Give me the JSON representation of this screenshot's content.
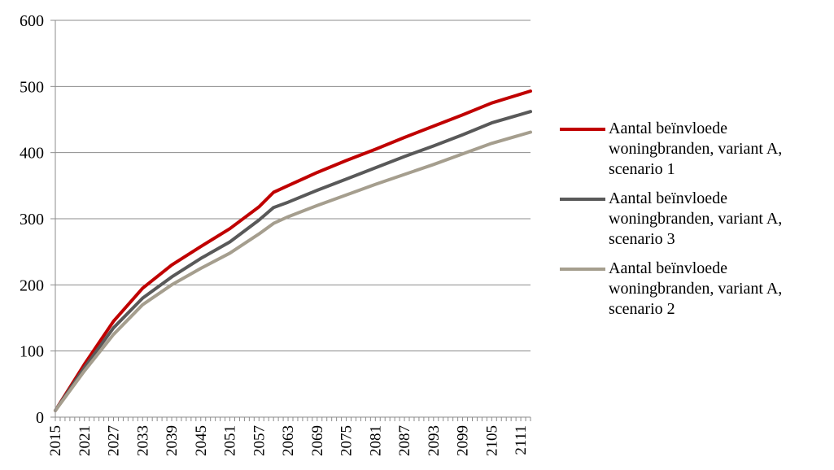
{
  "chart_data": {
    "type": "line",
    "title": "",
    "xlabel": "",
    "ylabel": "",
    "ylim": [
      0,
      600
    ],
    "yticks": [
      "0",
      "100",
      "200",
      "300",
      "400",
      "500",
      "600"
    ],
    "x_start": 2015,
    "x_end": 2113,
    "xtick_labels": [
      "2015",
      "2021",
      "2027",
      "2033",
      "2039",
      "2045",
      "2051",
      "2057",
      "2063",
      "2069",
      "2075",
      "2081",
      "2087",
      "2093",
      "2099",
      "2105",
      "2111"
    ],
    "grid": "horizontal",
    "legend_position": "right",
    "series": [
      {
        "name": "Aantal beïnvloede woningbranden, variant A, scenario 1",
        "color": "#c00000",
        "points": [
          [
            2015,
            10
          ],
          [
            2021,
            80
          ],
          [
            2027,
            145
          ],
          [
            2033,
            195
          ],
          [
            2039,
            230
          ],
          [
            2045,
            258
          ],
          [
            2051,
            285
          ],
          [
            2057,
            318
          ],
          [
            2060,
            340
          ],
          [
            2063,
            350
          ],
          [
            2069,
            370
          ],
          [
            2075,
            388
          ],
          [
            2081,
            405
          ],
          [
            2087,
            423
          ],
          [
            2093,
            440
          ],
          [
            2099,
            457
          ],
          [
            2105,
            475
          ],
          [
            2113,
            493
          ]
        ]
      },
      {
        "name": "Aantal beïnvloede woningbranden, variant A, scenario 3",
        "color": "#595959",
        "points": [
          [
            2015,
            10
          ],
          [
            2021,
            75
          ],
          [
            2027,
            135
          ],
          [
            2033,
            180
          ],
          [
            2039,
            212
          ],
          [
            2045,
            240
          ],
          [
            2051,
            265
          ],
          [
            2057,
            298
          ],
          [
            2060,
            317
          ],
          [
            2063,
            325
          ],
          [
            2069,
            343
          ],
          [
            2075,
            360
          ],
          [
            2081,
            377
          ],
          [
            2087,
            394
          ],
          [
            2093,
            410
          ],
          [
            2099,
            427
          ],
          [
            2105,
            445
          ],
          [
            2113,
            462
          ]
        ]
      },
      {
        "name": "Aantal beïnvloede woningbranden, variant A, scenario 2",
        "color": "#a59e8e",
        "points": [
          [
            2015,
            10
          ],
          [
            2021,
            70
          ],
          [
            2027,
            125
          ],
          [
            2033,
            170
          ],
          [
            2039,
            200
          ],
          [
            2045,
            225
          ],
          [
            2051,
            248
          ],
          [
            2057,
            277
          ],
          [
            2060,
            293
          ],
          [
            2063,
            303
          ],
          [
            2069,
            320
          ],
          [
            2075,
            336
          ],
          [
            2081,
            352
          ],
          [
            2087,
            367
          ],
          [
            2093,
            382
          ],
          [
            2099,
            398
          ],
          [
            2105,
            414
          ],
          [
            2113,
            431
          ]
        ]
      }
    ]
  }
}
